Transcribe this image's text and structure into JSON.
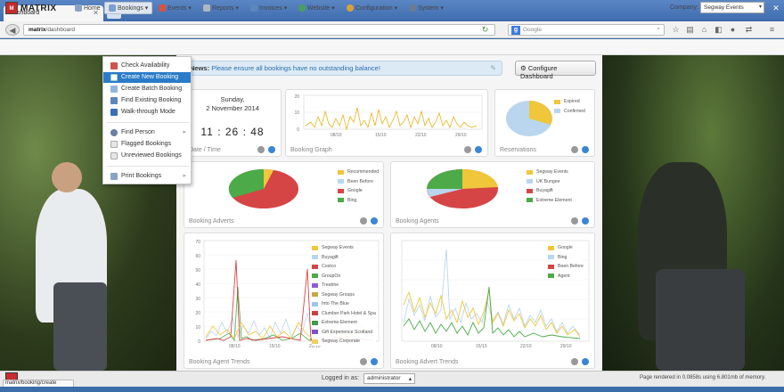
{
  "browser": {
    "tab_title": "Dashboard",
    "url_domain": "matrix",
    "url_path": "/dashboard",
    "search_placeholder": "Google"
  },
  "appbar": {
    "logo_text": "MATRIX",
    "menus": [
      {
        "label": "Home"
      },
      {
        "label": "Bookings"
      },
      {
        "label": "Events"
      },
      {
        "label": "Reports"
      },
      {
        "label": "Invoices"
      },
      {
        "label": "Website"
      },
      {
        "label": "Configuration"
      },
      {
        "label": "System"
      }
    ],
    "company_label": "Company:",
    "company_value": "Segway Events"
  },
  "bookings_menu": {
    "items": [
      "Check Availability",
      "Create New Booking",
      "Create Batch Booking",
      "Find Existing Booking",
      "Walk-through Mode",
      "Find Person",
      "Flagged Bookings",
      "Unreviewed Bookings",
      "Print Bookings"
    ],
    "selected": "Create New Booking"
  },
  "news": {
    "label": "News:",
    "text": "Please ensure all bookings have no outstanding balance!"
  },
  "configure_button": "Configure Dashboard",
  "date_panel": {
    "weekday": "Sunday,",
    "date": "2 November 2014",
    "hours": "11",
    "minutes": "26",
    "seconds": "48",
    "title": "Date / Time"
  },
  "booking_graph": {
    "title": "Booking Graph",
    "x_ticks": [
      "08/10",
      "15/10",
      "22/10",
      "29/10"
    ],
    "y_ticks": [
      "0",
      "10",
      "20"
    ]
  },
  "reservations": {
    "title": "Reservations",
    "legend": [
      "Expired",
      "Confirmed"
    ]
  },
  "booking_adverts": {
    "title": "Booking Adverts",
    "legend": [
      "Recommended",
      "Been Before",
      "Google",
      "Bing"
    ]
  },
  "booking_agents": {
    "title": "Booking Agents",
    "legend": [
      "Segway Events",
      "UK Bungee",
      "Buyagift",
      "Extreme Element"
    ]
  },
  "agent_trends": {
    "title": "Booking Agent Trends",
    "x_ticks": [
      "08/10",
      "15/10",
      "22/10"
    ],
    "y_ticks": [
      "0",
      "10",
      "20",
      "30",
      "40",
      "50",
      "60",
      "70"
    ],
    "legend": [
      "Segway Events",
      "Buyagift",
      "Costco",
      "GroupOn",
      "Treatme",
      "Segway Groups",
      "Into The Blue",
      "Clumber Park Hotel & Spa",
      "Extreme Element",
      "Gift Experience Scotland",
      "Segway Corporate"
    ]
  },
  "advert_trends": {
    "title": "Booking Advert Trends",
    "x_ticks": [
      "08/10",
      "15/10",
      "22/10",
      "29/10"
    ],
    "legend": [
      "Google",
      "Bing",
      "Been Before",
      "Agent"
    ]
  },
  "statusbar": {
    "url": "matrix/booking/create",
    "logged_label": "Logged in as:",
    "user": "administrator",
    "rendered": "Page rendered in 0.0858s using 6.801mb of memory."
  },
  "colors": {
    "accent": "#2a7bc8",
    "chart_yellow": "#f0c63a",
    "chart_red": "#d64545",
    "chart_green": "#4caa48",
    "chart_lightblue": "#b9d6ee"
  }
}
